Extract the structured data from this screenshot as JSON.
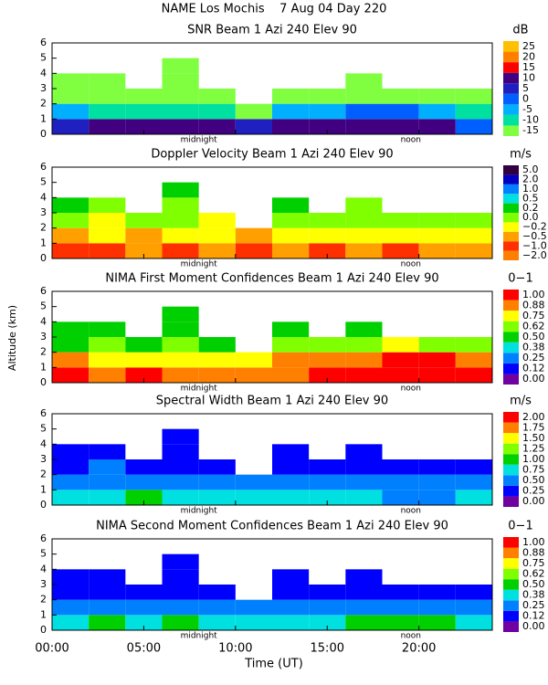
{
  "header": {
    "title": "NAME Los Mochis    7 Aug 04 Day 220"
  },
  "axes": {
    "xlabel": "Time (UT)",
    "xlim": [
      0,
      24
    ],
    "xticks": [
      {
        "value": 0,
        "label": "00:00"
      },
      {
        "value": 5,
        "label": "05:00"
      },
      {
        "value": 10,
        "label": "10:00"
      },
      {
        "value": 15,
        "label": "15:00"
      },
      {
        "value": 20,
        "label": "20:00"
      }
    ],
    "ylabel": "Altitude (km)",
    "ylim": [
      0,
      6
    ],
    "yticks": [
      0,
      1,
      2,
      3,
      4,
      5,
      6
    ],
    "annotations": [
      {
        "text": "midnight",
        "x": 7
      },
      {
        "text": "noon",
        "x": 19
      }
    ]
  },
  "chart_data": [
    {
      "type": "heatmap",
      "title": "SNR Beam 1 Azi 240 Elev 90",
      "units": "dB",
      "cticks": [
        -15,
        -10,
        -5,
        0,
        5,
        10,
        15,
        20,
        25
      ],
      "colors": [
        "#80ff40",
        "#00e0a0",
        "#00b0ff",
        "#0060ff",
        "#2020c0",
        "#400080",
        "#ff0000",
        "#ff8000",
        "#ffc000"
      ],
      "xbins": [
        0,
        2,
        4,
        6,
        8,
        10,
        12,
        14,
        16,
        18,
        20,
        22,
        24
      ],
      "ybins": [
        0,
        1,
        2,
        3,
        4,
        5,
        6
      ],
      "z": [
        [
          5,
          10,
          12,
          11,
          10,
          8,
          14,
          10,
          10,
          13,
          12,
          3
        ],
        [
          -5,
          -8,
          -10,
          -10,
          -10,
          -12,
          -5,
          -3,
          0,
          0,
          -5,
          -8
        ],
        [
          -12,
          -13,
          -15,
          -15,
          -15,
          null,
          -13,
          -15,
          -14,
          -13,
          -15,
          -15
        ],
        [
          -15,
          -15,
          null,
          -15,
          null,
          null,
          null,
          null,
          -15,
          null,
          null,
          null
        ],
        [
          null,
          null,
          null,
          -15,
          null,
          null,
          null,
          null,
          null,
          null,
          null,
          null
        ],
        [
          null,
          null,
          null,
          null,
          null,
          null,
          null,
          null,
          null,
          null,
          null,
          null
        ]
      ]
    },
    {
      "type": "heatmap",
      "title": "Doppler Velocity Beam 1 Azi 240 Elev 90",
      "units": "m/s",
      "cticks": [
        {
          "value": -2,
          "label": "−2.0"
        },
        {
          "value": -1,
          "label": "−1.0"
        },
        {
          "value": -0.5,
          "label": "−0.5"
        },
        {
          "value": -0.2,
          "label": "−0.2"
        },
        {
          "value": 0,
          "label": "0.0"
        },
        0.2,
        0.5,
        {
          "value": 1,
          "label": "1.0"
        },
        {
          "value": 2,
          "label": "2.0"
        },
        {
          "value": 5,
          "label": "5.0"
        }
      ],
      "colors": [
        "#ff8000",
        "#ff3000",
        "#ffa000",
        "#ffff00",
        "#80ff00",
        "#00d000",
        "#00e0e0",
        "#0080ff",
        "#0000c0",
        "#300040"
      ],
      "xbins": [
        0,
        2,
        4,
        6,
        8,
        10,
        12,
        14,
        16,
        18,
        20,
        22,
        24
      ],
      "ybins": [
        0,
        1,
        2,
        3,
        4,
        5,
        6
      ],
      "z": [
        [
          -1,
          -1,
          -0.5,
          -1,
          -0.5,
          -1,
          -0.5,
          -1,
          -0.5,
          -1,
          -0.5,
          -0.5
        ],
        [
          -0.5,
          -0.2,
          -0.5,
          -0.2,
          -0.2,
          -0.5,
          -0.2,
          -0.2,
          -0.2,
          -0.2,
          -0.2,
          -0.2
        ],
        [
          0,
          -0.2,
          0,
          0,
          -0.2,
          null,
          0,
          0,
          0,
          0,
          0,
          0
        ],
        [
          0.2,
          0,
          null,
          0,
          null,
          null,
          0.2,
          null,
          0,
          null,
          null,
          null
        ],
        [
          null,
          null,
          null,
          0.2,
          null,
          null,
          null,
          null,
          null,
          null,
          null,
          null
        ],
        [
          null,
          null,
          null,
          null,
          null,
          null,
          null,
          null,
          null,
          null,
          null,
          null
        ]
      ]
    },
    {
      "type": "heatmap",
      "title": "NIMA First Moment Confidences Beam 1 Azi 240 Elev 90",
      "units": "0−1",
      "cticks": [
        {
          "value": 0,
          "label": "0.00"
        },
        0.12,
        0.25,
        0.38,
        {
          "value": 0.5,
          "label": "0.50"
        },
        0.62,
        0.75,
        0.88,
        {
          "value": 1,
          "label": "1.00"
        }
      ],
      "colors": [
        "#7000a0",
        "#0000ff",
        "#0080ff",
        "#00e0e0",
        "#00d000",
        "#80ff00",
        "#ffff00",
        "#ff8000",
        "#ff0000"
      ],
      "xbins": [
        0,
        2,
        4,
        6,
        8,
        10,
        12,
        14,
        16,
        18,
        20,
        22,
        24
      ],
      "ybins": [
        0,
        1,
        2,
        3,
        4,
        5,
        6
      ],
      "z": [
        [
          1,
          0.88,
          1,
          0.88,
          0.88,
          0.88,
          0.88,
          1,
          1,
          1,
          1,
          1
        ],
        [
          0.88,
          0.75,
          0.75,
          0.75,
          0.75,
          0.75,
          0.88,
          0.88,
          0.88,
          1,
          1,
          0.88
        ],
        [
          0.5,
          0.62,
          0.5,
          0.62,
          0.5,
          null,
          0.62,
          0.62,
          0.62,
          0.75,
          0.62,
          0.62
        ],
        [
          0.5,
          0.5,
          null,
          0.5,
          null,
          null,
          0.5,
          null,
          0.5,
          null,
          null,
          null
        ],
        [
          null,
          null,
          null,
          0.5,
          null,
          null,
          null,
          null,
          null,
          null,
          null,
          null
        ],
        [
          null,
          null,
          null,
          null,
          null,
          null,
          null,
          null,
          null,
          null,
          null,
          null
        ]
      ]
    },
    {
      "type": "heatmap",
      "title": "Spectral Width Beam 1 Azi 240 Elev 90",
      "units": "m/s",
      "cticks": [
        {
          "value": 0,
          "label": "0.00"
        },
        0.25,
        {
          "value": 0.5,
          "label": "0.50"
        },
        0.75,
        {
          "value": 1,
          "label": "1.00"
        },
        1.25,
        {
          "value": 1.5,
          "label": "1.50"
        },
        1.75,
        {
          "value": 2,
          "label": "2.00"
        }
      ],
      "colors": [
        "#7000a0",
        "#0000ff",
        "#0080ff",
        "#00e0e0",
        "#00d000",
        "#80ff00",
        "#ffff00",
        "#ff8000",
        "#ff0000"
      ],
      "xbins": [
        0,
        2,
        4,
        6,
        8,
        10,
        12,
        14,
        16,
        18,
        20,
        22,
        24
      ],
      "ybins": [
        0,
        1,
        2,
        3,
        4,
        5,
        6
      ],
      "z": [
        [
          0.75,
          0.75,
          1,
          0.75,
          0.75,
          0.75,
          0.75,
          0.75,
          0.75,
          0.5,
          0.5,
          0.75
        ],
        [
          0.5,
          0.5,
          0.5,
          0.5,
          0.5,
          0.5,
          0.5,
          0.5,
          0.5,
          0.5,
          0.5,
          0.5
        ],
        [
          0.25,
          0.5,
          0.25,
          0.25,
          0.25,
          null,
          0.25,
          0.25,
          0.25,
          0.25,
          0.25,
          0.25
        ],
        [
          0.25,
          0.25,
          null,
          0.25,
          null,
          null,
          0.25,
          null,
          0.25,
          null,
          null,
          null
        ],
        [
          null,
          null,
          null,
          0.25,
          null,
          null,
          null,
          null,
          null,
          null,
          null,
          null
        ],
        [
          null,
          null,
          null,
          null,
          null,
          null,
          null,
          null,
          null,
          null,
          null,
          null
        ]
      ]
    },
    {
      "type": "heatmap",
      "title": "NIMA Second Moment Confidences Beam 1 Azi 240 Elev 90",
      "units": "0−1",
      "cticks": [
        {
          "value": 0,
          "label": "0.00"
        },
        0.12,
        0.25,
        0.38,
        {
          "value": 0.5,
          "label": "0.50"
        },
        0.62,
        0.75,
        0.88,
        {
          "value": 1,
          "label": "1.00"
        }
      ],
      "colors": [
        "#7000a0",
        "#0000ff",
        "#0080ff",
        "#00e0e0",
        "#00d000",
        "#80ff00",
        "#ffff00",
        "#ff8000",
        "#ff0000"
      ],
      "xbins": [
        0,
        2,
        4,
        6,
        8,
        10,
        12,
        14,
        16,
        18,
        20,
        22,
        24
      ],
      "ybins": [
        0,
        1,
        2,
        3,
        4,
        5,
        6
      ],
      "z": [
        [
          0.38,
          0.5,
          0.38,
          0.5,
          0.38,
          0.38,
          0.38,
          0.38,
          0.5,
          0.5,
          0.5,
          0.38
        ],
        [
          0.25,
          0.25,
          0.25,
          0.25,
          0.25,
          0.25,
          0.25,
          0.25,
          0.25,
          0.25,
          0.25,
          0.25
        ],
        [
          0.12,
          0.12,
          0.12,
          0.12,
          0.12,
          null,
          0.12,
          0.12,
          0.12,
          0.12,
          0.12,
          0.12
        ],
        [
          0.12,
          0.12,
          null,
          0.12,
          null,
          null,
          0.12,
          null,
          0.12,
          null,
          null,
          null
        ],
        [
          null,
          null,
          null,
          0.12,
          null,
          null,
          null,
          null,
          null,
          null,
          null,
          null
        ],
        [
          null,
          null,
          null,
          null,
          null,
          null,
          null,
          null,
          null,
          null,
          null,
          null
        ]
      ]
    }
  ]
}
